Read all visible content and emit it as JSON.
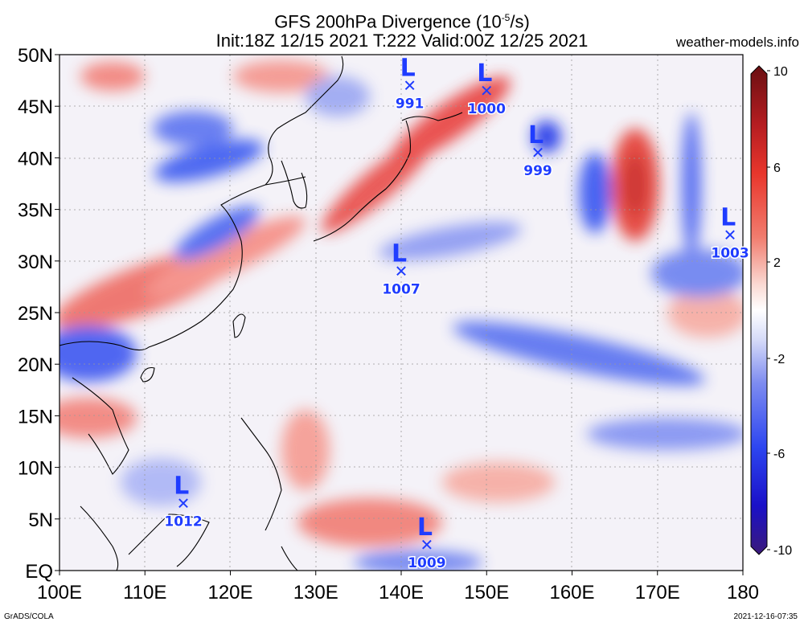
{
  "title": {
    "line1_prefix": "GFS 200hPa Divergence (10",
    "line1_exp": "-5",
    "line1_suffix": "/s)",
    "line2": "Init:18Z 12/15 2021 T:222 Valid:00Z 12/25 2021"
  },
  "site": "weather-models.info",
  "lat_labels": [
    "50N",
    "45N",
    "40N",
    "35N",
    "30N",
    "25N",
    "20N",
    "15N",
    "10N",
    "5N",
    "EQ"
  ],
  "lon_labels": [
    "100E",
    "110E",
    "120E",
    "130E",
    "140E",
    "150E",
    "160E",
    "170E",
    "180"
  ],
  "colorbar": {
    "labels": [
      "10",
      "6",
      "2",
      "-2",
      "-6",
      "-10"
    ],
    "colors": [
      "#6a0f12",
      "#b51d21",
      "#e8362c",
      "#f17c6e",
      "#f8c4bb",
      "#ffffff",
      "#c5ccf6",
      "#7d8bf0",
      "#2d46f0",
      "#1a10c8",
      "#3b1a7a"
    ]
  },
  "lows": [
    {
      "letter": "L",
      "mark": "✕",
      "pressure": "991",
      "lon": 141,
      "lat": 47
    },
    {
      "letter": "L",
      "mark": "✕",
      "pressure": "1000",
      "lon": 150,
      "lat": 46.5
    },
    {
      "letter": "L",
      "mark": "✕",
      "pressure": "999",
      "lon": 156,
      "lat": 40.5
    },
    {
      "letter": "L",
      "mark": "✕",
      "pressure": "1003",
      "lon": 178.5,
      "lat": 32.5
    },
    {
      "letter": "L",
      "mark": "✕",
      "pressure": "1007",
      "lon": 140,
      "lat": 29
    },
    {
      "letter": "L",
      "mark": "✕",
      "pressure": "1012",
      "lon": 114.5,
      "lat": 6.5
    },
    {
      "letter": "L",
      "mark": "✕",
      "pressure": "1009",
      "lon": 143,
      "lat": 2.5
    }
  ],
  "footer_left": "GrADS/COLA",
  "footer_right": "2021-12-16-07:35"
}
